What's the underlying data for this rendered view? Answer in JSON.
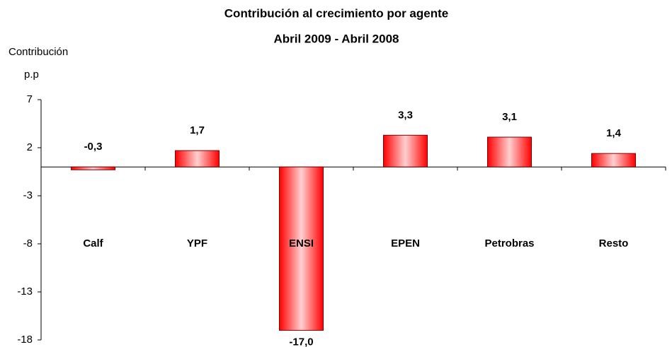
{
  "chart_data": {
    "type": "bar",
    "title": "Contribución al crecimiento por agente",
    "subtitle": "Abril 2009 - Abril 2008",
    "y_label": "Contribución",
    "y_unit": "p.p",
    "categories": [
      "Calf",
      "YPF",
      "ENSI",
      "EPEN",
      "Petrobras",
      "Resto"
    ],
    "values": [
      -0.3,
      1.7,
      -17.0,
      3.3,
      3.1,
      1.4
    ],
    "value_labels": [
      "-0,3",
      "1,7",
      "-17,0",
      "3,3",
      "3,1",
      "1,4"
    ],
    "color": "#ff0000",
    "ylim": [
      -18,
      7
    ],
    "yticks": [
      7,
      2,
      -3,
      -8,
      -13,
      -18
    ],
    "grid": false
  }
}
